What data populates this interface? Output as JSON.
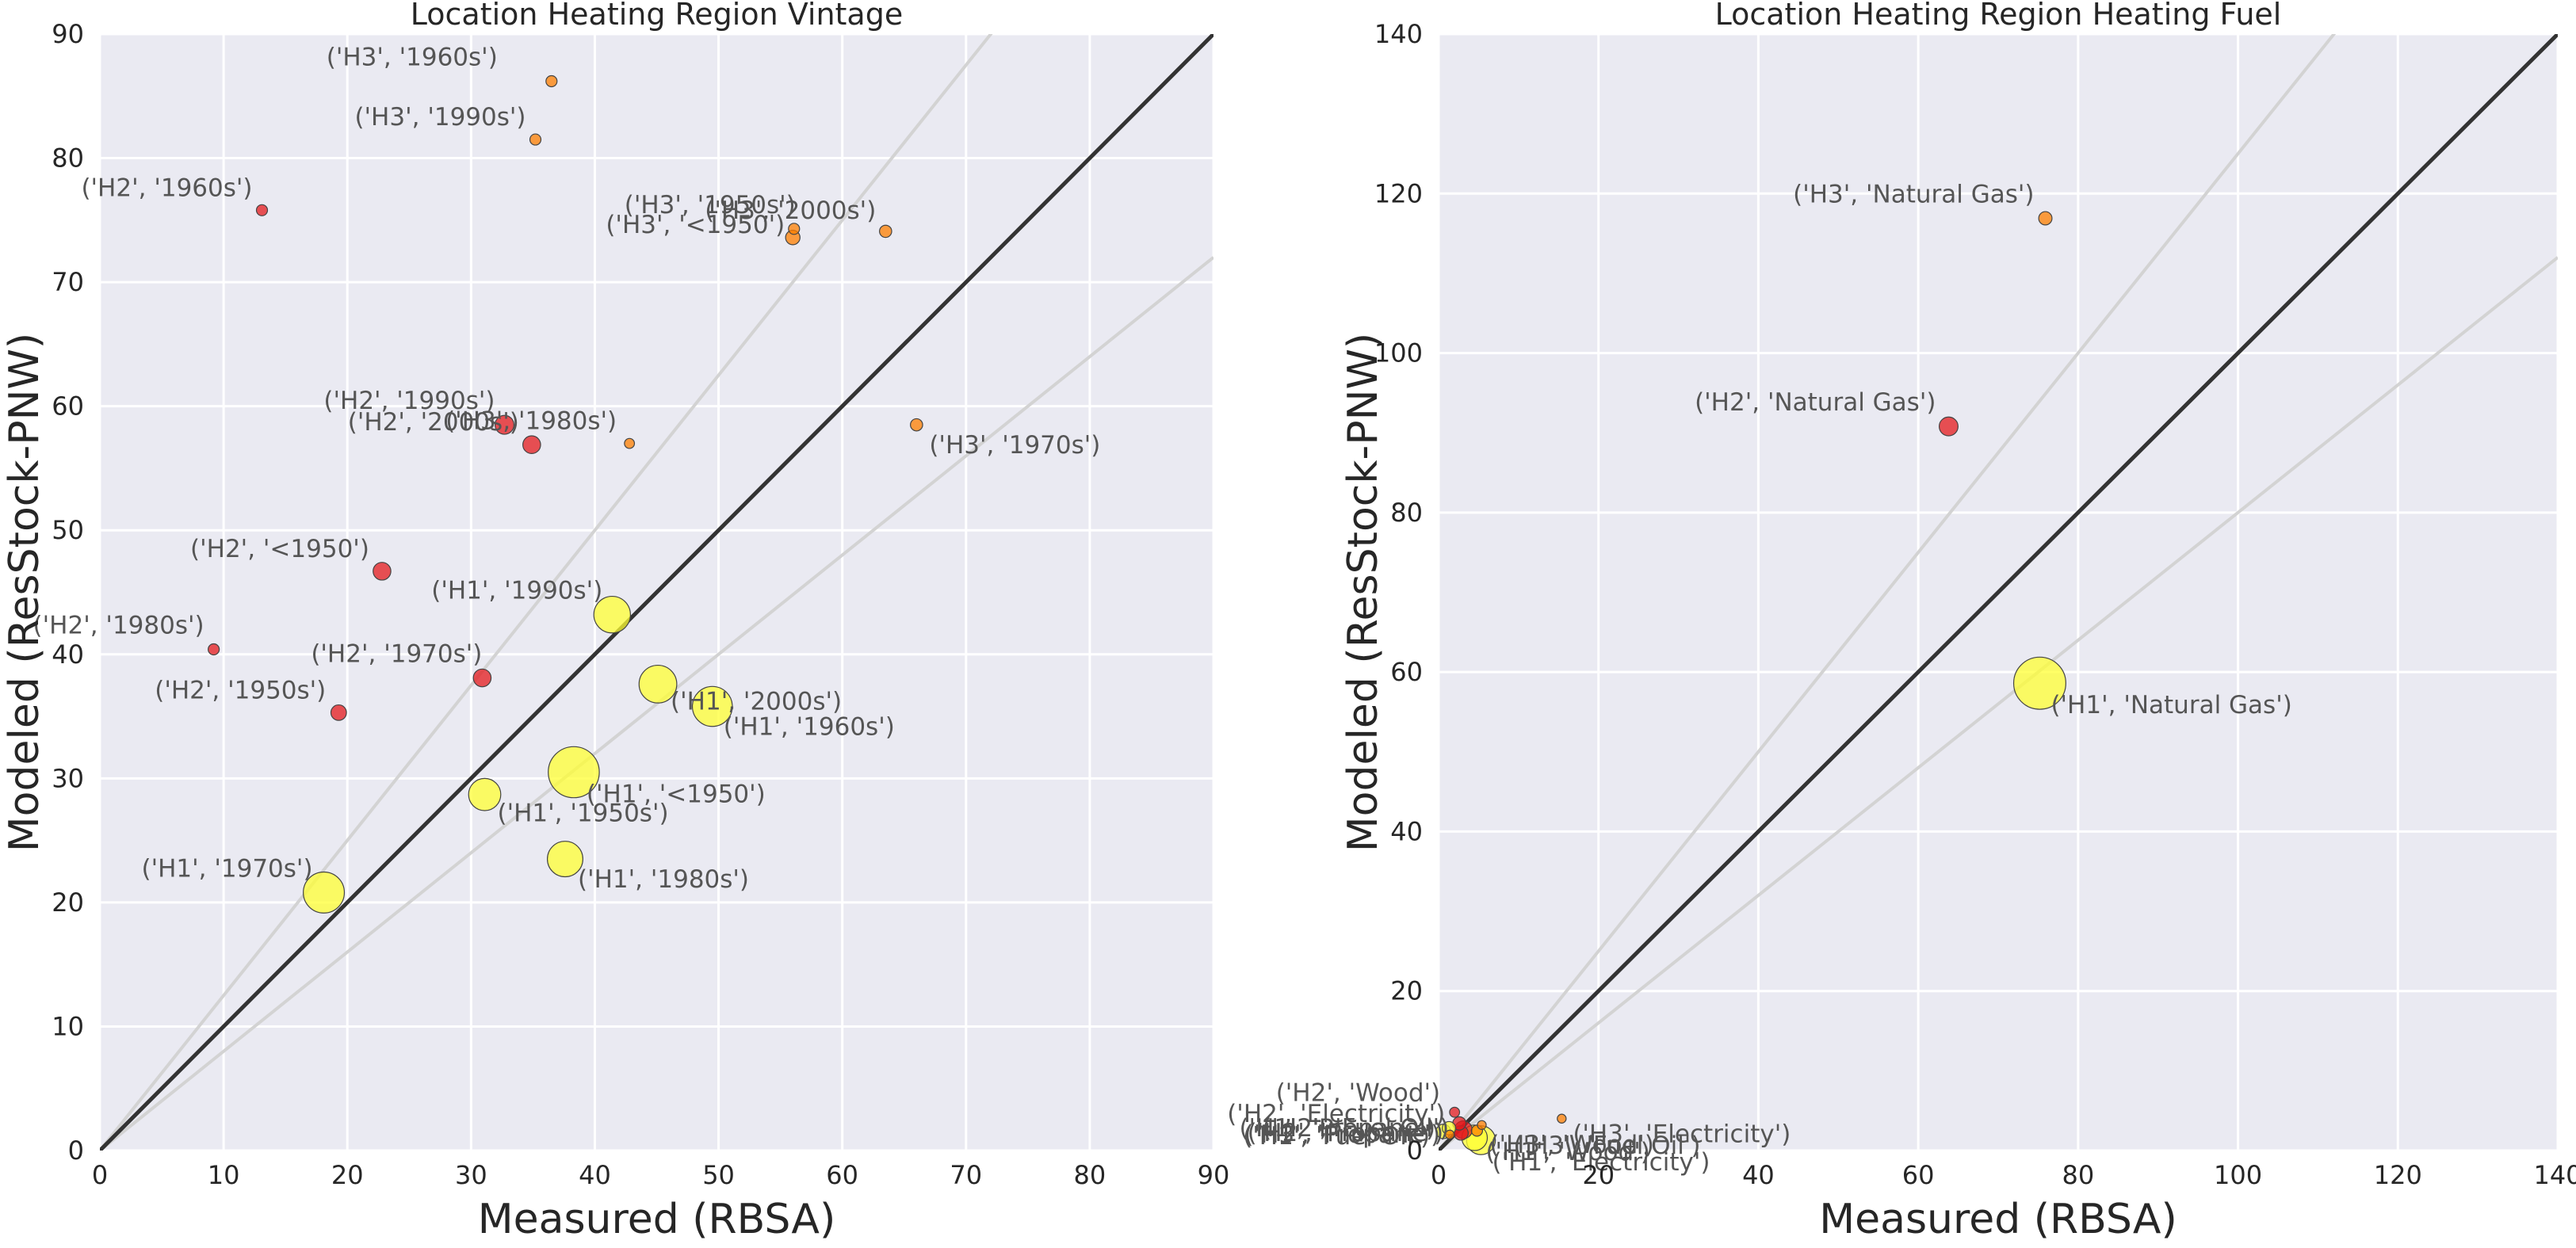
{
  "colors": {
    "plot_bg": "#EAEAF2",
    "grid": "#FFFFFF",
    "diagonal": "#333333",
    "guide_lines": "#D3D3D3",
    "H1": "#FFFF33",
    "H2": "#E41A1C",
    "H3": "#FF7F00"
  },
  "chart_data": [
    {
      "type": "scatter",
      "title": "Location Heating Region Vintage",
      "xlabel": "Measured (RBSA)",
      "ylabel": "Modeled (ResStock-PNW)",
      "xlim": [
        0,
        90
      ],
      "ylim": [
        0,
        90
      ],
      "xticks": [
        "0",
        "10",
        "20",
        "30",
        "40",
        "50",
        "60",
        "70",
        "80",
        "90"
      ],
      "yticks": [
        "0",
        "10",
        "20",
        "30",
        "40",
        "50",
        "60",
        "70",
        "80",
        "90"
      ],
      "grid": true,
      "reference_lines": [
        "y = x",
        "y = 1.25x",
        "y = 0.8x"
      ],
      "points": [
        {
          "label": "('H3', '1960s')",
          "group": "H3",
          "x": 36.5,
          "y": 86.2,
          "size": 1
        },
        {
          "label": "('H3', '1990s')",
          "group": "H3",
          "x": 35.2,
          "y": 81.5,
          "size": 1
        },
        {
          "label": "('H2', '1960s')",
          "group": "H2",
          "x": 13.1,
          "y": 75.8,
          "size": 1
        },
        {
          "label": "('H3', '1950s')",
          "group": "H3",
          "x": 56.1,
          "y": 74.3,
          "size": 1
        },
        {
          "label": "('H3', '<1950')",
          "group": "H3",
          "x": 56.0,
          "y": 73.6,
          "size": 1.3
        },
        {
          "label": "('H3', '2000s')",
          "group": "H3",
          "x": 63.5,
          "y": 74.1,
          "size": 1.1
        },
        {
          "label": "('H3', '1970s')",
          "group": "H3",
          "x": 66.0,
          "y": 58.5,
          "size": 1.1
        },
        {
          "label": "('H3', '1980s')",
          "group": "H3",
          "x": 42.8,
          "y": 57.0,
          "size": 0.9
        },
        {
          "label": "('H2', '1990s')",
          "group": "H2",
          "x": 32.7,
          "y": 58.5,
          "size": 1.7
        },
        {
          "label": "('H2', '2000s')",
          "group": "H2",
          "x": 34.9,
          "y": 56.9,
          "size": 1.6
        },
        {
          "label": "('H2', '<1950')",
          "group": "H2",
          "x": 22.8,
          "y": 46.7,
          "size": 1.6
        },
        {
          "label": "('H2', '1980s')",
          "group": "H2",
          "x": 9.2,
          "y": 40.4,
          "size": 1
        },
        {
          "label": "('H2', '1970s')",
          "group": "H2",
          "x": 30.9,
          "y": 38.1,
          "size": 1.6
        },
        {
          "label": "('H2', '1950s')",
          "group": "H2",
          "x": 19.3,
          "y": 35.3,
          "size": 1.4
        },
        {
          "label": "('H1', '1990s')",
          "group": "H1",
          "x": 41.4,
          "y": 43.2,
          "size": 3.3
        },
        {
          "label": "('H1', '2000s')",
          "group": "H1",
          "x": 45.1,
          "y": 37.6,
          "size": 3.4
        },
        {
          "label": "('H1', '1960s')",
          "group": "H1",
          "x": 49.5,
          "y": 35.8,
          "size": 3.6
        },
        {
          "label": "('H1', '<1950')",
          "group": "H1",
          "x": 38.3,
          "y": 30.5,
          "size": 4.6
        },
        {
          "label": "('H1', '1950s')",
          "group": "H1",
          "x": 31.1,
          "y": 28.7,
          "size": 2.9
        },
        {
          "label": "('H1', '1980s')",
          "group": "H1",
          "x": 37.6,
          "y": 23.5,
          "size": 3.2
        },
        {
          "label": "('H1', '1970s')",
          "group": "H1",
          "x": 18.1,
          "y": 20.8,
          "size": 3.7
        }
      ]
    },
    {
      "type": "scatter",
      "title": "Location Heating Region Heating Fuel",
      "xlabel": "Measured (RBSA)",
      "ylabel": "Modeled (ResStock-PNW)",
      "xlim": [
        0,
        140
      ],
      "ylim": [
        0,
        140
      ],
      "xticks": [
        "0",
        "20",
        "40",
        "60",
        "80",
        "100",
        "120",
        "140"
      ],
      "yticks": [
        "0",
        "20",
        "40",
        "60",
        "80",
        "100",
        "120",
        "140"
      ],
      "grid": true,
      "reference_lines": [
        "y = x",
        "y = 1.25x",
        "y = 0.8x"
      ],
      "points": [
        {
          "label": "('H3', 'Natural Gas')",
          "group": "H3",
          "x": 75.9,
          "y": 116.9,
          "size": 1.2
        },
        {
          "label": "('H2', 'Natural Gas')",
          "group": "H2",
          "x": 63.8,
          "y": 90.8,
          "size": 1.7
        },
        {
          "label": "('H1', 'Natural Gas')",
          "group": "H1",
          "x": 75.2,
          "y": 58.6,
          "size": 4.7
        },
        {
          "label": "('H3', 'Electricity')",
          "group": "H3",
          "x": 15.4,
          "y": 4.0,
          "size": 0.8
        },
        {
          "label": "('H2', 'Wood')",
          "group": "H2",
          "x": 2.0,
          "y": 4.8,
          "size": 0.9
        },
        {
          "label": "('H2', 'Electricity')",
          "group": "H2",
          "x": 2.6,
          "y": 3.4,
          "size": 1.2
        },
        {
          "label": "('H2', 'Fuel Oil')",
          "group": "H2",
          "x": 3.1,
          "y": 2.6,
          "size": 1.6
        },
        {
          "label": "('H2', 'Propane')",
          "group": "H2",
          "x": 2.8,
          "y": 2.2,
          "size": 1.3
        },
        {
          "label": "('H3', 'Propane')",
          "group": "H3",
          "x": 1.4,
          "y": 2.0,
          "size": 0.8
        },
        {
          "label": "('H3', 'Wood')",
          "group": "H3",
          "x": 4.8,
          "y": 2.5,
          "size": 1
        },
        {
          "label": "('H3', 'Fuel Oil')",
          "group": "H3",
          "x": 5.4,
          "y": 3.2,
          "size": 0.8
        },
        {
          "label": "('H1', 'Electricity')",
          "group": "H1",
          "x": 5.3,
          "y": 1.3,
          "size": 2.6
        },
        {
          "label": "('H1', 'Wood')",
          "group": "H1",
          "x": 4.5,
          "y": 1.6,
          "size": 2.3
        },
        {
          "label": "('H1', 'Fuel Oil')",
          "group": "H1",
          "x": 1.3,
          "y": 2.8,
          "size": 1.2
        },
        {
          "label": "('H1', 'Propane')",
          "group": "H1",
          "x": 0.6,
          "y": 2.4,
          "size": 1.3
        }
      ]
    }
  ]
}
